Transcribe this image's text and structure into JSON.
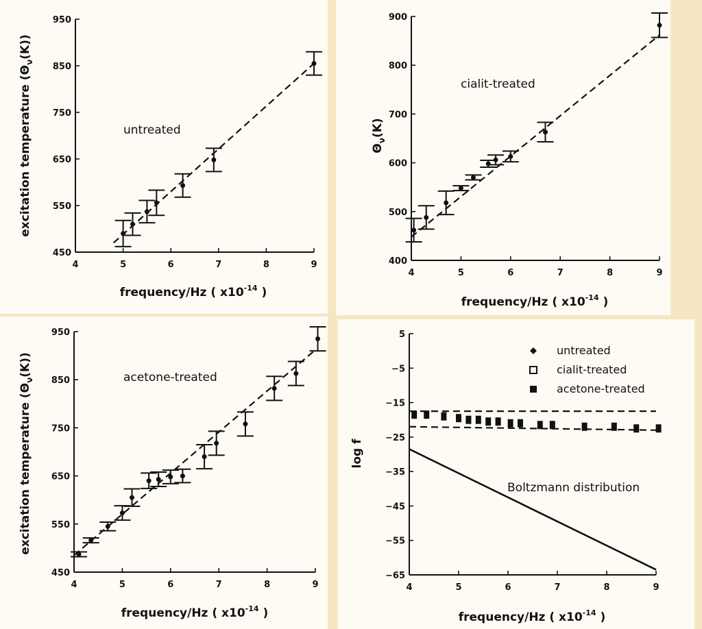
{
  "chart_data": [
    {
      "id": "p1",
      "type": "scatter",
      "title": "",
      "annotation": "untreated",
      "xlabel": "frequency/Hz  ( x10",
      "xlabel_exp": "-14",
      "xlabel_close": " )",
      "ylabel": "excitation temperature (Θ",
      "ylabel_sub": "ν",
      "ylabel_close": "(K))",
      "xlim": [
        4,
        9
      ],
      "ylim": [
        450,
        950
      ],
      "xticks": [
        4,
        5,
        6,
        7,
        8,
        9
      ],
      "yticks": [
        450,
        550,
        650,
        750,
        850,
        950
      ],
      "fit": {
        "x": [
          4.8,
          9.0
        ],
        "y": [
          470,
          855
        ]
      },
      "points": [
        {
          "x": 5.0,
          "y": 490,
          "err": 28
        },
        {
          "x": 5.2,
          "y": 510,
          "err": 24
        },
        {
          "x": 5.5,
          "y": 537,
          "err": 24
        },
        {
          "x": 5.7,
          "y": 556,
          "err": 27
        },
        {
          "x": 6.25,
          "y": 593,
          "err": 25
        },
        {
          "x": 6.9,
          "y": 648,
          "err": 25
        },
        {
          "x": 9.0,
          "y": 855,
          "err": 25
        }
      ]
    },
    {
      "id": "p2",
      "type": "scatter",
      "title": "",
      "annotation": "cialit-treated",
      "xlabel": "frequency/Hz  ( x10",
      "xlabel_exp": "-14",
      "xlabel_close": " )",
      "ylabel": "Θ",
      "ylabel_sub": "ν",
      "ylabel_close": "(K)",
      "xlim": [
        4,
        9
      ],
      "ylim": [
        400,
        900
      ],
      "xticks": [
        4,
        5,
        6,
        7,
        8,
        9
      ],
      "yticks": [
        400,
        500,
        600,
        700,
        800,
        900
      ],
      "fit": {
        "x": [
          4.0,
          9.0
        ],
        "y": [
          448,
          862
        ]
      },
      "points": [
        {
          "x": 4.05,
          "y": 462,
          "err": 24
        },
        {
          "x": 4.3,
          "y": 488,
          "err": 24
        },
        {
          "x": 4.7,
          "y": 518,
          "err": 24
        },
        {
          "x": 5.0,
          "y": 548,
          "err": 5
        },
        {
          "x": 5.25,
          "y": 570,
          "err": 5
        },
        {
          "x": 5.55,
          "y": 598,
          "err": 7
        },
        {
          "x": 5.7,
          "y": 606,
          "err": 10
        },
        {
          "x": 6.0,
          "y": 613,
          "err": 11
        },
        {
          "x": 6.7,
          "y": 663,
          "err": 20
        },
        {
          "x": 9.0,
          "y": 882,
          "err": 25
        }
      ]
    },
    {
      "id": "p3",
      "type": "scatter",
      "title": "",
      "annotation": "acetone-treated",
      "xlabel": "frequency/Hz  ( x10",
      "xlabel_exp": "-14",
      "xlabel_close": " )",
      "ylabel": "excitation temperature (Θ",
      "ylabel_sub": "ν",
      "ylabel_close": "(K))",
      "xlim": [
        4,
        9
      ],
      "ylim": [
        450,
        950
      ],
      "xticks": [
        4,
        5,
        6,
        7,
        8,
        9
      ],
      "yticks": [
        450,
        550,
        650,
        750,
        850,
        950
      ],
      "fit": {
        "x": [
          4.0,
          9.0
        ],
        "y": [
          485,
          912
        ]
      },
      "points": [
        {
          "x": 4.1,
          "y": 487,
          "err": 5
        },
        {
          "x": 4.35,
          "y": 516,
          "err": 5
        },
        {
          "x": 4.7,
          "y": 545,
          "err": 9
        },
        {
          "x": 5.0,
          "y": 573,
          "err": 15
        },
        {
          "x": 5.2,
          "y": 605,
          "err": 18
        },
        {
          "x": 5.55,
          "y": 640,
          "err": 16
        },
        {
          "x": 5.75,
          "y": 643,
          "err": 15
        },
        {
          "x": 6.0,
          "y": 648,
          "err": 14
        },
        {
          "x": 6.25,
          "y": 650,
          "err": 14
        },
        {
          "x": 6.7,
          "y": 690,
          "err": 25
        },
        {
          "x": 6.95,
          "y": 718,
          "err": 25
        },
        {
          "x": 7.55,
          "y": 758,
          "err": 25
        },
        {
          "x": 8.15,
          "y": 832,
          "err": 25
        },
        {
          "x": 8.6,
          "y": 863,
          "err": 25
        },
        {
          "x": 9.05,
          "y": 935,
          "err": 25
        }
      ]
    },
    {
      "id": "p4",
      "type": "line",
      "title": "",
      "annotation": "Boltzmann distribution",
      "xlabel": "frequency/Hz  ( x10",
      "xlabel_exp": "-14",
      "xlabel_close": " )",
      "ylabel": "log f",
      "xlim": [
        4,
        9
      ],
      "ylim": [
        -65,
        5
      ],
      "xticks": [
        4,
        5,
        6,
        7,
        8,
        9
      ],
      "yticks": [
        5,
        -5,
        -15,
        -25,
        -35,
        -45,
        -55,
        -65
      ],
      "ytick_labels": [
        "5",
        "−5",
        "−15",
        "−25",
        "−35",
        "−45",
        "−55",
        "−65"
      ],
      "legend": [
        "untreated",
        "cialit-treated",
        "acetone-treated"
      ],
      "legend_position": "top-right",
      "dashed_upper": {
        "x": [
          4.0,
          9.0
        ],
        "y": [
          -17.5,
          -17.5
        ]
      },
      "dashed_lower": {
        "x": [
          4.0,
          9.0
        ],
        "y": [
          -22.0,
          -23.0
        ]
      },
      "boltzmann": {
        "x": [
          4.0,
          9.0
        ],
        "y": [
          -28.5,
          -63.5
        ]
      },
      "markers": [
        {
          "x": 4.1,
          "y": -18.5
        },
        {
          "x": 4.35,
          "y": -18.5
        },
        {
          "x": 4.7,
          "y": -19
        },
        {
          "x": 5.0,
          "y": -19.5
        },
        {
          "x": 5.2,
          "y": -20
        },
        {
          "x": 5.4,
          "y": -20
        },
        {
          "x": 5.6,
          "y": -20.5
        },
        {
          "x": 5.8,
          "y": -20.5
        },
        {
          "x": 6.05,
          "y": -21
        },
        {
          "x": 6.25,
          "y": -21
        },
        {
          "x": 6.65,
          "y": -21.5
        },
        {
          "x": 6.9,
          "y": -21.5
        },
        {
          "x": 7.55,
          "y": -22
        },
        {
          "x": 8.15,
          "y": -22
        },
        {
          "x": 8.6,
          "y": -22.5
        },
        {
          "x": 9.05,
          "y": -22.5
        }
      ]
    }
  ]
}
